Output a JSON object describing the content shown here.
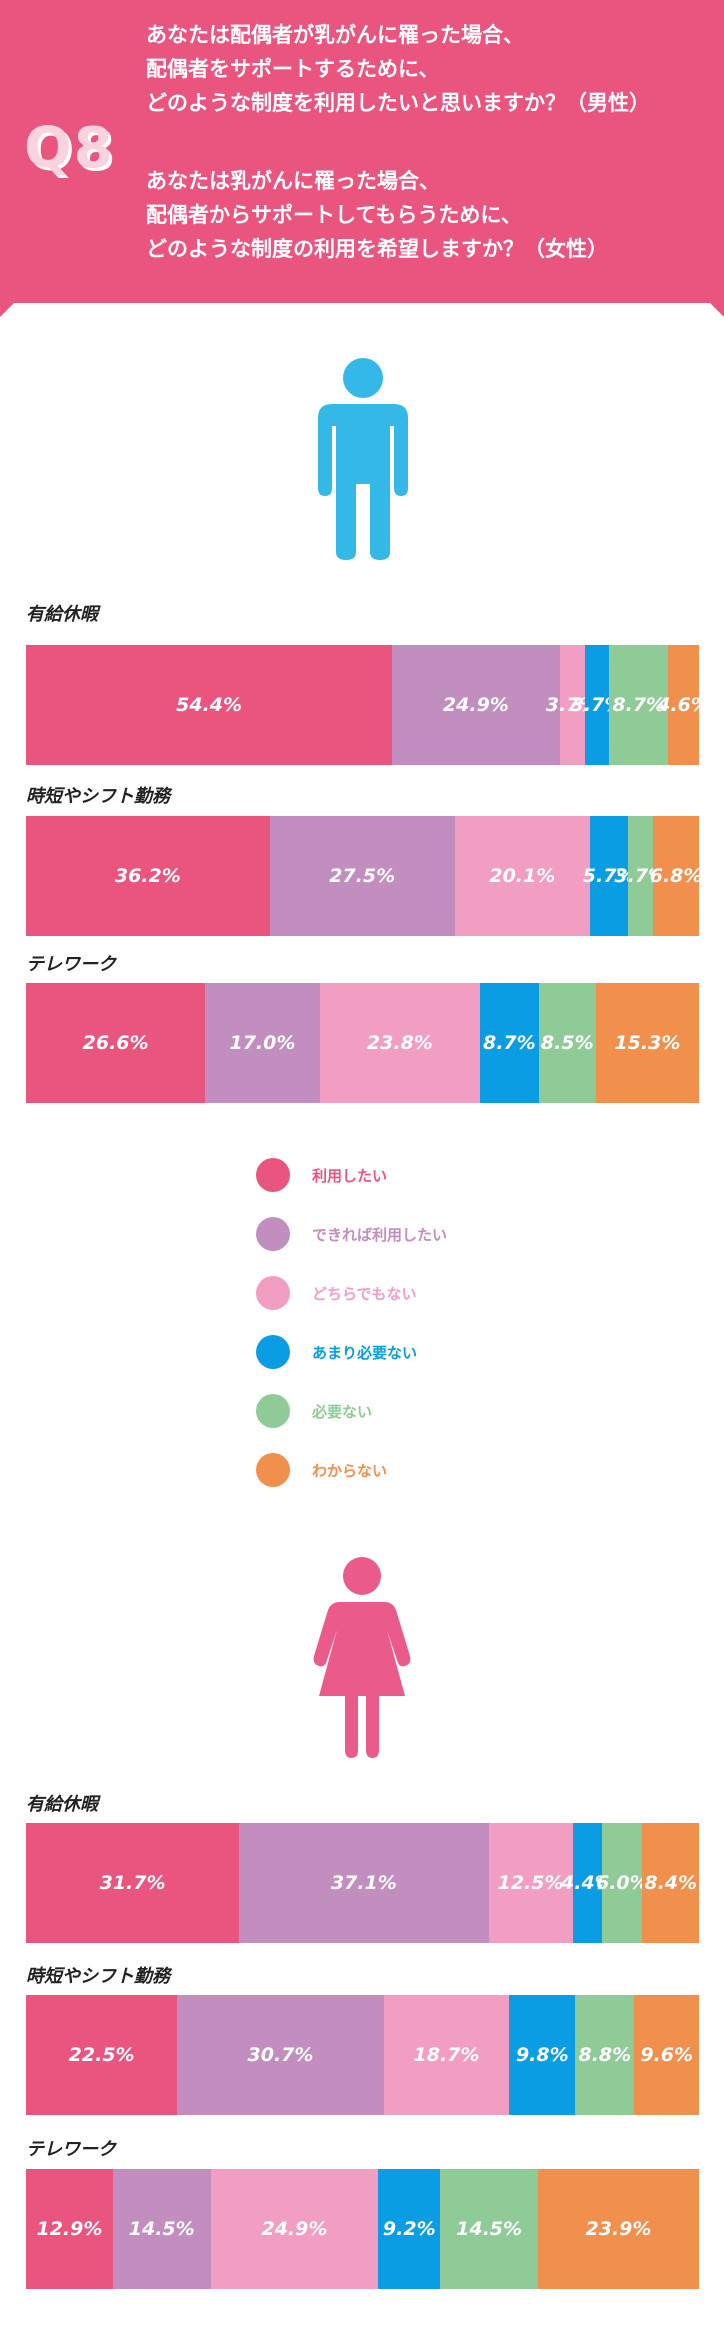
{
  "header": {
    "q_label": "Q8",
    "male_question": [
      "あなたは配偶者が乳がんに罹った場合、",
      "配偶者をサポートするために、",
      "どのような制度を利用したいと思いますか？（男性）"
    ],
    "female_question": [
      "あなたは乳がんに罹った場合、",
      "配偶者からサポートしてもらうために、",
      "どのような制度の利用を希望しますか？（女性）"
    ]
  },
  "colors": {
    "header_bg": "#e9557f",
    "male_icon": "#34b8e8",
    "female_icon": "#ea5b8c"
  },
  "legend": [
    {
      "label": "利用したい",
      "color": "#e9557f"
    },
    {
      "label": "できれば利用したい",
      "color": "#c28ebf"
    },
    {
      "label": "どちらでもない",
      "color": "#f29ec3"
    },
    {
      "label": "あまり必要ない",
      "color": "#0a9de4"
    },
    {
      "label": "必要ない",
      "color": "#8ecb96"
    },
    {
      "label": "わからない",
      "color": "#f0904c"
    }
  ],
  "chart_data": [
    {
      "type": "bar",
      "orientation": "horizontal-stacked-100",
      "group": "male",
      "categories": [
        "有給休暇",
        "時短やシフト勤務",
        "テレワーク"
      ],
      "series": [
        {
          "name": "利用したい",
          "values": [
            54.4,
            36.2,
            26.6
          ]
        },
        {
          "name": "できれば利用したい",
          "values": [
            24.9,
            27.5,
            17.0
          ]
        },
        {
          "name": "どちらでもない",
          "values": [
            3.7,
            20.1,
            23.8
          ]
        },
        {
          "name": "あまり必要ない",
          "values": [
            3.7,
            5.7,
            8.7
          ]
        },
        {
          "name": "必要ない",
          "values": [
            8.7,
            3.7,
            8.5
          ]
        },
        {
          "name": "わからない",
          "values": [
            4.6,
            6.8,
            15.3
          ]
        }
      ],
      "labels": [
        [
          "54.4%",
          "24.9%",
          "3.7%",
          "3.7%",
          "8.7%",
          "4.6%"
        ],
        [
          "36.2%",
          "27.5%",
          "20.1%",
          "5.7%",
          "3.7%",
          "6.8%"
        ],
        [
          "26.6%",
          "17.0%",
          "23.8%",
          "8.7%",
          "8.5%",
          "15.3%"
        ]
      ]
    },
    {
      "type": "bar",
      "orientation": "horizontal-stacked-100",
      "group": "female",
      "categories": [
        "有給休暇",
        "時短やシフト勤務",
        "テレワーク"
      ],
      "series": [
        {
          "name": "利用したい",
          "values": [
            31.7,
            22.5,
            12.9
          ]
        },
        {
          "name": "できれば利用したい",
          "values": [
            37.1,
            30.7,
            14.5
          ]
        },
        {
          "name": "どちらでもない",
          "values": [
            12.5,
            18.7,
            24.9
          ]
        },
        {
          "name": "あまり必要ない",
          "values": [
            4.4,
            9.8,
            9.2
          ]
        },
        {
          "name": "必要ない",
          "values": [
            6.0,
            8.8,
            14.5
          ]
        },
        {
          "name": "わからない",
          "values": [
            8.4,
            9.6,
            23.9
          ]
        }
      ],
      "labels": [
        [
          "31.7%",
          "37.1%",
          "12.5%",
          "4.4%",
          "6.0%",
          "8.4%"
        ],
        [
          "22.5%",
          "30.7%",
          "18.7%",
          "9.8%",
          "8.8%",
          "9.6%"
        ],
        [
          "12.9%",
          "14.5%",
          "24.9%",
          "9.2%",
          "14.5%",
          "23.9%"
        ]
      ]
    }
  ]
}
